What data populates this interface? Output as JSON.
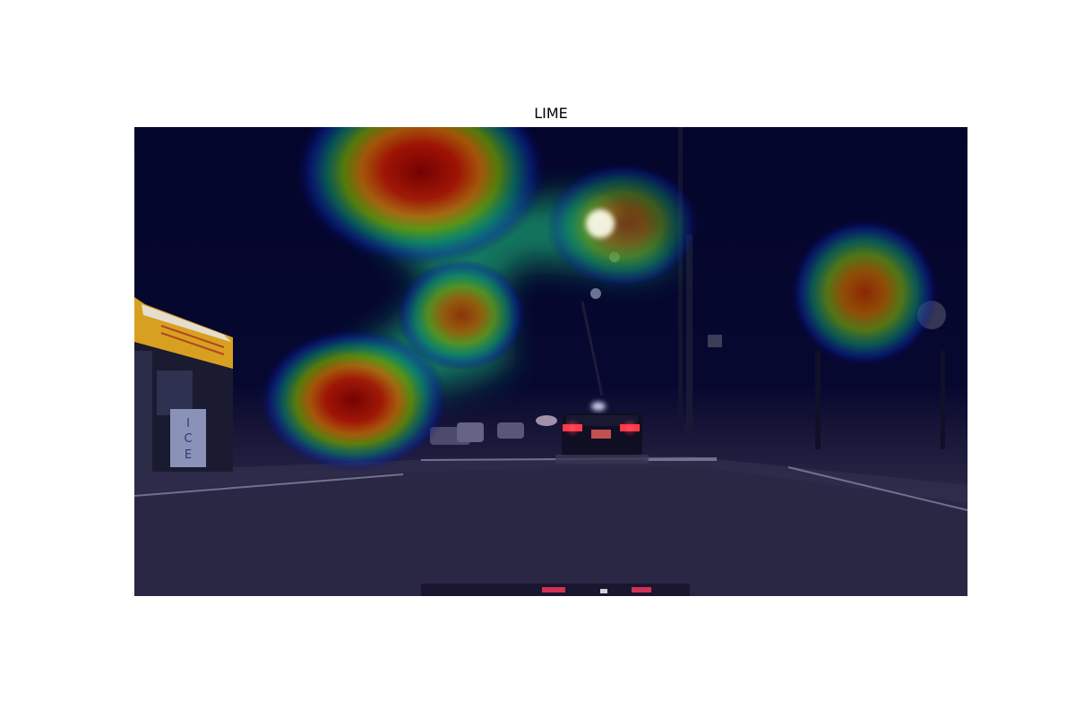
{
  "figure": {
    "title": "LIME"
  },
  "image": {
    "scene": "night-street-dashcam",
    "overlay": "heatmap",
    "colormap": "jet",
    "storefront_sign": {
      "text": "",
      "color": "#e0a020"
    },
    "ice_box_letters": [
      "I",
      "C",
      "E"
    ]
  },
  "colors": {
    "sky": "#050530",
    "road": "#2a2745",
    "sidewalk": "#3a3858",
    "sign_yellow": "#e0a020",
    "street_light": "#fffbe0",
    "tail_light": "#ff3040"
  }
}
